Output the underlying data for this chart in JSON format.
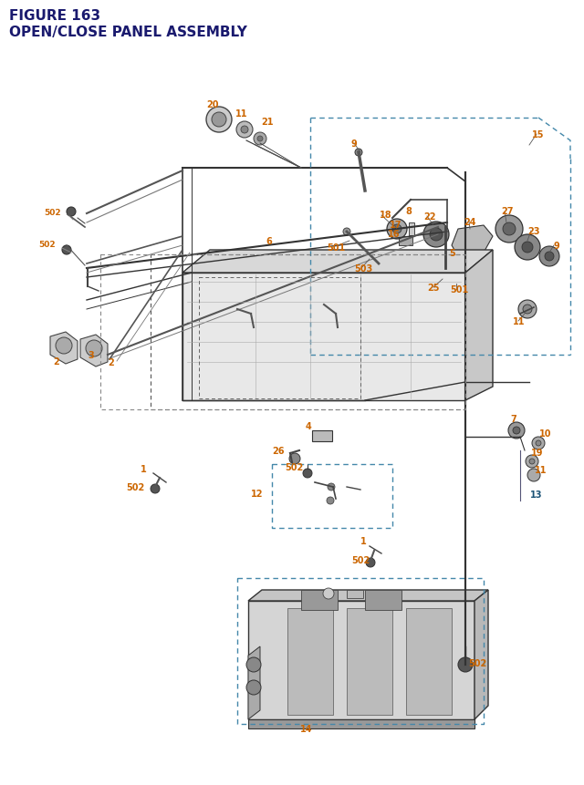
{
  "title_line1": "FIGURE 163",
  "title_line2": "OPEN/CLOSE PANEL ASSEMBLY",
  "title_color": "#1a1a6e",
  "title_fontsize": 11,
  "bg_color": "#ffffff",
  "label_color_orange": "#cc6600",
  "label_color_blue": "#1a5276",
  "label_fontsize": 7.0
}
